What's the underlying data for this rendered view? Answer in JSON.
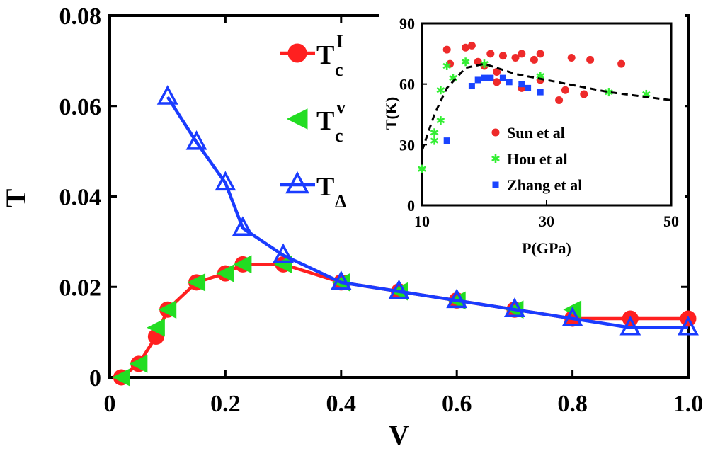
{
  "chart_data": [
    {
      "type": "line",
      "xlabel": "V",
      "ylabel": "T",
      "xlim": [
        0,
        1.0
      ],
      "ylim": [
        0,
        0.08
      ],
      "xticks": [
        "0",
        "0.2",
        "0.4",
        "0.6",
        "0.8",
        "1.0"
      ],
      "yticks": [
        "0",
        "0.02",
        "0.04",
        "0.06",
        "0.08"
      ],
      "legend": {
        "entries": [
          {
            "main": "T",
            "sub": "c",
            "sup": "I"
          },
          {
            "main": "T",
            "sub": "c",
            "sup": "v"
          },
          {
            "main": "T",
            "sub": "Δ",
            "sup": ""
          }
        ]
      },
      "series": [
        {
          "name": "Tc^I",
          "color": "#ff2020",
          "marker": "circle",
          "line": true,
          "x": [
            0.02,
            0.05,
            0.08,
            0.1,
            0.15,
            0.2,
            0.23,
            0.3,
            0.4,
            0.5,
            0.6,
            0.7,
            0.8,
            0.9,
            1.0
          ],
          "y": [
            0.0,
            0.003,
            0.009,
            0.015,
            0.021,
            0.023,
            0.025,
            0.025,
            0.021,
            0.019,
            0.017,
            0.015,
            0.013,
            0.013,
            0.013
          ]
        },
        {
          "name": "Tc^v",
          "color": "#22dd22",
          "marker": "triangle-left",
          "line": false,
          "x": [
            0.02,
            0.05,
            0.08,
            0.1,
            0.15,
            0.2,
            0.23,
            0.3,
            0.4,
            0.5,
            0.6,
            0.7,
            0.8
          ],
          "y": [
            0.0,
            0.003,
            0.011,
            0.015,
            0.021,
            0.023,
            0.025,
            0.025,
            0.021,
            0.019,
            0.017,
            0.015,
            0.015
          ]
        },
        {
          "name": "TΔ",
          "color": "#1a3cff",
          "marker": "triangle-up",
          "line": true,
          "x": [
            0.1,
            0.15,
            0.2,
            0.23,
            0.3,
            0.4,
            0.5,
            0.6,
            0.7,
            0.8,
            0.9,
            1.0
          ],
          "y": [
            0.062,
            0.052,
            0.043,
            0.033,
            0.027,
            0.021,
            0.019,
            0.017,
            0.015,
            0.013,
            0.011,
            0.011
          ]
        }
      ]
    },
    {
      "type": "scatter",
      "inset": true,
      "xlabel": "P(GPa)",
      "ylabel": "T(K)",
      "xlim": [
        10,
        50
      ],
      "ylim": [
        0,
        90
      ],
      "xticks": [
        "10",
        "30",
        "50"
      ],
      "yticks": [
        "0",
        "30",
        "60",
        "90"
      ],
      "legend": [
        "Sun et al",
        "Hou et al",
        "Zhang et al"
      ],
      "series": [
        {
          "name": "Sun et al",
          "color": "#ee2a2a",
          "marker": "circle",
          "x": [
            14,
            14.5,
            17,
            18,
            19,
            20,
            21,
            22,
            22,
            23,
            25,
            26,
            26,
            28,
            29,
            29,
            32,
            33,
            34,
            36,
            37,
            42
          ],
          "y": [
            77,
            70,
            78,
            79,
            71,
            69,
            75,
            66,
            61,
            74,
            73,
            58,
            75,
            72,
            75,
            62,
            52,
            57,
            73,
            55,
            72,
            70
          ]
        },
        {
          "name": "Hou et al",
          "color": "#33ee33",
          "marker": "star",
          "x": [
            10,
            12,
            12,
            13,
            13,
            14,
            15,
            17,
            20,
            29,
            40,
            46
          ],
          "y": [
            18,
            36,
            32,
            42,
            57,
            69,
            63,
            71,
            70,
            64,
            56,
            55
          ]
        },
        {
          "name": "Zhang et al",
          "color": "#1a44ff",
          "marker": "square",
          "x": [
            14,
            18,
            19,
            20,
            21,
            23,
            24,
            26,
            27,
            29
          ],
          "y": [
            32,
            59,
            62,
            63,
            63,
            63,
            61,
            60,
            58,
            56
          ]
        },
        {
          "name": "fit",
          "color": "#000000",
          "marker": "none",
          "dashed": true,
          "x": [
            10,
            12,
            14,
            17,
            20,
            25,
            30,
            35,
            40,
            45,
            50
          ],
          "y": [
            27,
            45,
            58,
            68,
            70,
            65,
            62,
            59,
            56,
            54,
            52
          ]
        }
      ]
    }
  ]
}
